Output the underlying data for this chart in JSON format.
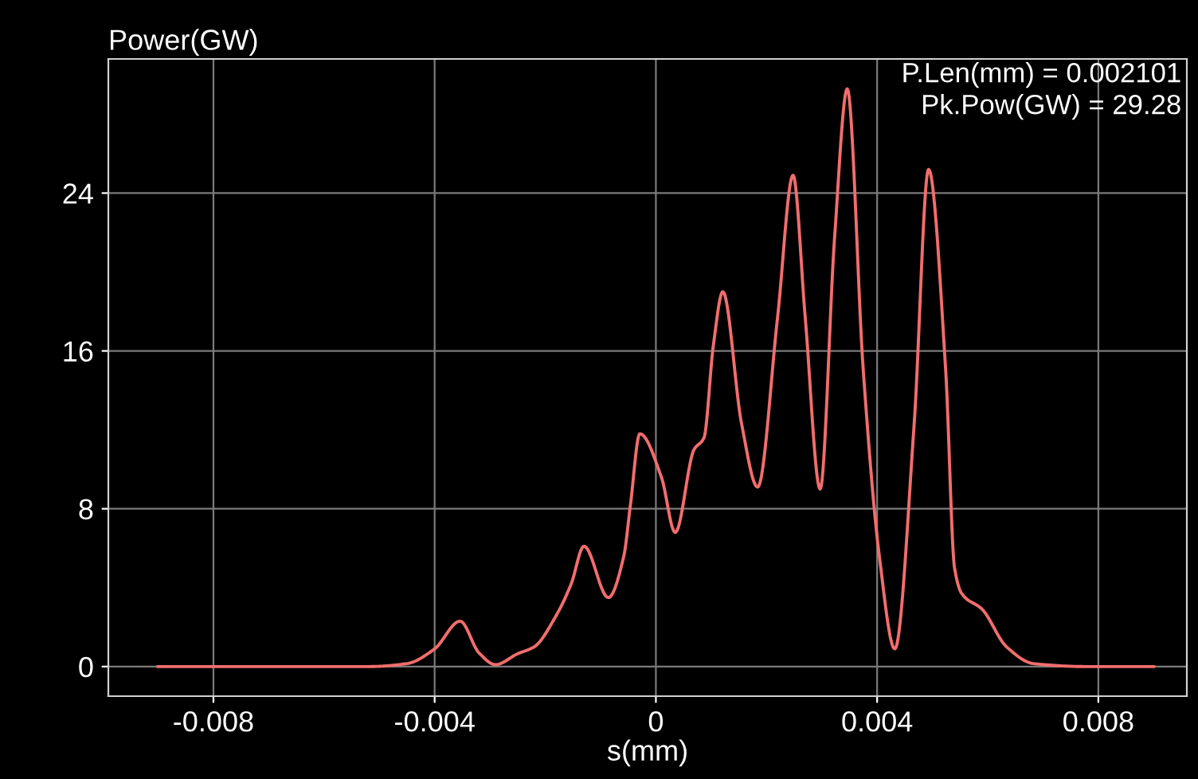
{
  "chart_data": {
    "type": "line",
    "xlabel": "s(mm)",
    "ylabel": "Power(GW)",
    "annotations": [
      "P.Len(mm) = 0.002101",
      "Pk.Pow(GW) = 29.28"
    ],
    "x": [
      -0.009,
      -0.0052,
      -0.0045,
      -0.004,
      -0.00354,
      -0.0032,
      -0.0029,
      -0.0025,
      -0.0022,
      -0.0018,
      -0.00153,
      -0.0013,
      -0.00086,
      -0.00058,
      -0.00046,
      -0.00029,
      0.0001,
      0.00035,
      0.00069,
      0.00087,
      0.00104,
      0.00121,
      0.00155,
      0.00184,
      0.0022,
      0.00248,
      0.0027,
      0.00297,
      0.00323,
      0.00346,
      0.00375,
      0.00404,
      0.00432,
      0.00467,
      0.00493,
      0.00524,
      0.0054,
      0.00553,
      0.0059,
      0.00634,
      0.00683,
      0.0078,
      0.009
    ],
    "series": [
      {
        "color": "#f26d6d",
        "values": [
          0,
          0,
          0.15,
          0.9,
          2.3,
          0.7,
          0.1,
          0.65,
          1.0,
          2.6,
          4.2,
          6.1,
          3.5,
          5.6,
          8.2,
          11.8,
          9.6,
          6.8,
          11.0,
          11.6,
          16.3,
          19.0,
          12.3,
          9.1,
          17.7,
          24.9,
          17.7,
          9.0,
          21.7,
          29.28,
          15.0,
          5.6,
          0.9,
          12.3,
          25.2,
          15.0,
          5.0,
          3.7,
          2.9,
          1.0,
          0.15,
          0,
          0
        ]
      }
    ],
    "xlim": [
      -0.0099,
      0.0096
    ],
    "ylim": [
      -1.5,
      30.8
    ],
    "xticks": [
      -0.008,
      -0.004,
      0,
      0.004,
      0.008
    ],
    "yticks": [
      0,
      8,
      16,
      24
    ],
    "grid": true,
    "marker": "none",
    "line_style": "solid"
  }
}
